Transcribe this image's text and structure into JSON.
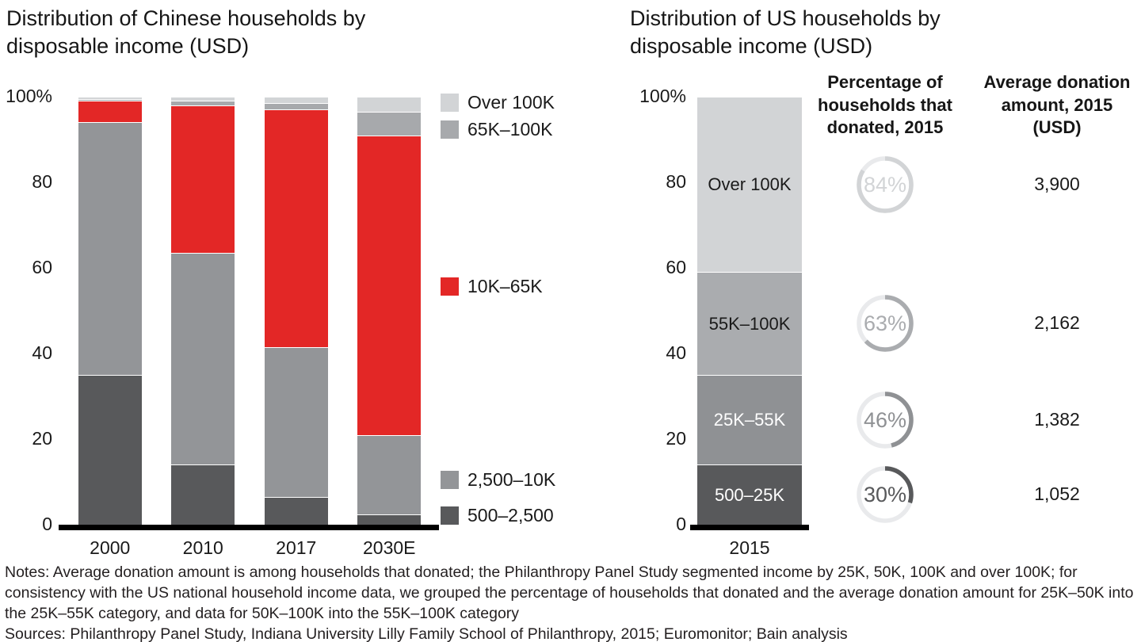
{
  "chart_data": [
    {
      "type": "bar",
      "stacked": true,
      "title": "Distribution of Chinese households by disposable income (USD)",
      "categories": [
        "2000",
        "2010",
        "2017",
        "2030E"
      ],
      "ylim": [
        0,
        100
      ],
      "yticks": [
        "100%",
        "80",
        "60",
        "40",
        "20",
        "0"
      ],
      "legend_position": "right",
      "series": [
        {
          "name": "500–2,500",
          "color": "#58595b",
          "values": [
            35,
            14,
            6.5,
            2.5
          ]
        },
        {
          "name": "2,500–10K",
          "color": "#939598",
          "values": [
            59,
            49.5,
            35,
            18.5
          ]
        },
        {
          "name": "10K–65K",
          "color": "#e32726",
          "values": [
            5,
            34.5,
            55.5,
            70
          ]
        },
        {
          "name": "65K–100K",
          "color": "#a7a9ac",
          "values": [
            0.5,
            1,
            1.5,
            5.5
          ]
        },
        {
          "name": "Over 100K",
          "color": "#d2d4d6",
          "values": [
            0.5,
            1,
            1.5,
            3.5
          ]
        }
      ]
    },
    {
      "type": "bar",
      "stacked": true,
      "title": "Distribution of US households by disposable income (USD)",
      "categories": [
        "2015"
      ],
      "ylim": [
        0,
        100
      ],
      "yticks": [
        "100%",
        "80",
        "60",
        "40",
        "20",
        "0"
      ],
      "series": [
        {
          "name": "500–25K",
          "color": "#58595b",
          "label_color": "#ffffff",
          "values": [
            14
          ]
        },
        {
          "name": "25K–55K",
          "color": "#8f9194",
          "label_color": "#ffffff",
          "values": [
            21
          ]
        },
        {
          "name": "55K–100K",
          "color": "#aaacaf",
          "label_color": "#1a1a1a",
          "values": [
            24
          ]
        },
        {
          "name": "Over 100K",
          "color": "#d2d4d6",
          "label_color": "#1a1a1a",
          "values": [
            41
          ]
        }
      ],
      "pct_households_donated_2015": [
        30,
        46,
        63,
        84
      ],
      "avg_donation_2015_usd": [
        1052,
        1382,
        2162,
        3900
      ]
    }
  ],
  "right_table": {
    "headers": [
      "Percentage of households that donated, 2015",
      "Average donation amount, 2015 (USD)"
    ],
    "rows": [
      {
        "segment": "Over 100K",
        "pct_donated": 84,
        "avg_donation": "3,900",
        "color": "#d2d4d6"
      },
      {
        "segment": "55K–100K",
        "pct_donated": 63,
        "avg_donation": "2,162",
        "color": "#aaacaf"
      },
      {
        "segment": "25K–55K",
        "pct_donated": 46,
        "avg_donation": "1,382",
        "color": "#8f9194"
      },
      {
        "segment": "500–25K",
        "pct_donated": 30,
        "avg_donation": "1,052",
        "color": "#58595b"
      }
    ]
  },
  "footer": {
    "notes": "Notes: Average donation amount is among households that donated; the Philanthropy Panel Study segmented income by 25K, 50K, 100K and over 100K; for consistency with the US national household income data, we grouped the percentage of households that donated and the average donation amount for 25K–50K into the 25K–55K category, and data for 50K–100K into the 55K–100K category",
    "sources": "Sources: Philanthropy Panel Study, Indiana University Lilly Family School of Philanthropy, 2015; Euromonitor; Bain analysis"
  }
}
